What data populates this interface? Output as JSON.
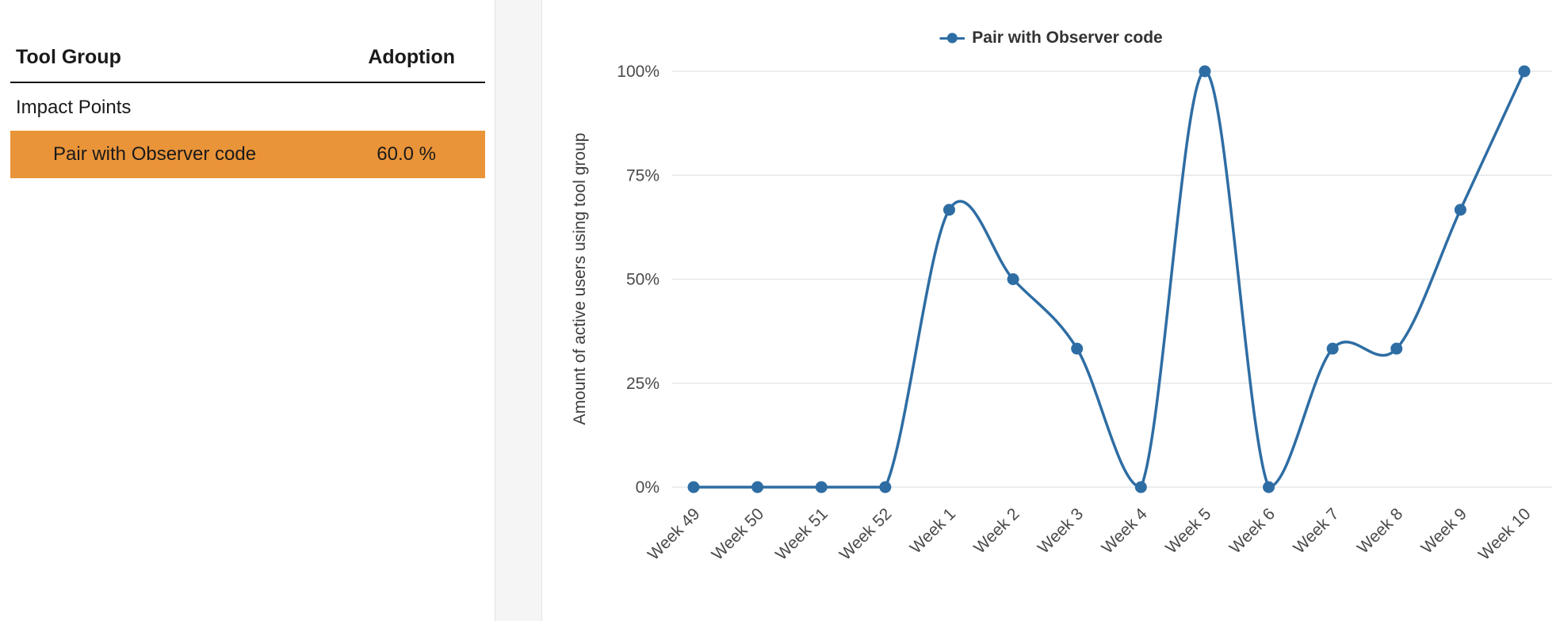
{
  "table": {
    "headers": {
      "tool_group": "Tool Group",
      "adoption": "Adoption"
    },
    "group_row": {
      "label": "Impact Points"
    },
    "rows": [
      {
        "label": "Pair with Observer code",
        "adoption": "60.0 %",
        "highlighted": true
      }
    ],
    "highlight_color": "#ea9439"
  },
  "chart_data": {
    "type": "line",
    "smooth": true,
    "legend_position": "top",
    "legend": [
      {
        "label": "Pair with Observer code",
        "color": "#2e6da4"
      }
    ],
    "x": [
      "Week 49",
      "Week 50",
      "Week 51",
      "Week 52",
      "Week 1",
      "Week 2",
      "Week 3",
      "Week 4",
      "Week 5",
      "Week 6",
      "Week 7",
      "Week 8",
      "Week 9",
      "Week 10"
    ],
    "series": [
      {
        "name": "Pair with Observer code",
        "values": [
          0,
          0,
          0,
          0,
          66.7,
          50,
          33.3,
          0,
          100,
          0,
          33.3,
          33.3,
          66.7,
          100
        ]
      }
    ],
    "xlabel": "",
    "ylabel": "Amount of active users using tool group",
    "ylim": [
      0,
      100
    ],
    "yticks": [
      0,
      25,
      50,
      75,
      100
    ],
    "ytick_labels": [
      "0%",
      "25%",
      "50%",
      "75%",
      "100%"
    ],
    "grid": true,
    "line_color": "#2e6da4",
    "grid_color": "#e4e8ec",
    "tick_color": "#4a4a4a"
  }
}
